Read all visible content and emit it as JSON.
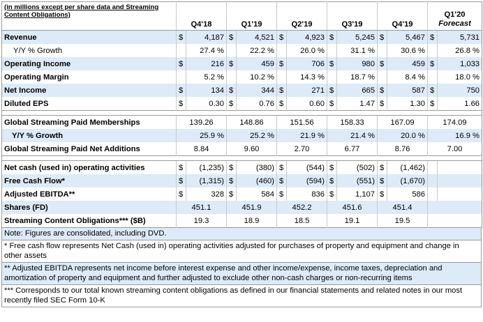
{
  "header": {
    "caption": "(in millions except per share data and Streaming Content Obligations)",
    "periods": [
      "Q4'18",
      "Q1'19",
      "Q2'19",
      "Q3'19",
      "Q4'19"
    ],
    "forecast_period": "Q1'20",
    "forecast_label": "Forecast"
  },
  "rows": [
    {
      "label": "Revenue",
      "cells": [
        [
          "$",
          "4,187"
        ],
        [
          "$",
          "4,521"
        ],
        [
          "$",
          "4,923"
        ],
        [
          "$",
          "5,245"
        ],
        [
          "$",
          "5,467"
        ],
        [
          "$",
          "5,731"
        ]
      ]
    },
    {
      "label": "Y/Y % Growth",
      "cells": [
        [
          "",
          "27.4 %"
        ],
        [
          "",
          "22.2 %"
        ],
        [
          "",
          "26.0 %"
        ],
        [
          "",
          "31.1 %"
        ],
        [
          "",
          "30.6 %"
        ],
        [
          "",
          "26.8 %"
        ]
      ]
    },
    {
      "label": "Operating Income",
      "cells": [
        [
          "$",
          "216"
        ],
        [
          "$",
          "459"
        ],
        [
          "$",
          "706"
        ],
        [
          "$",
          "980"
        ],
        [
          "$",
          "459"
        ],
        [
          "$",
          "1,033"
        ]
      ]
    },
    {
      "label": "Operating Margin",
      "cells": [
        [
          "",
          "5.2 %"
        ],
        [
          "",
          "10.2 %"
        ],
        [
          "",
          "14.3 %"
        ],
        [
          "",
          "18.7 %"
        ],
        [
          "",
          "8.4 %"
        ],
        [
          "",
          "18.0 %"
        ]
      ]
    },
    {
      "label": "Net Income",
      "cells": [
        [
          "$",
          "134"
        ],
        [
          "$",
          "344"
        ],
        [
          "$",
          "271"
        ],
        [
          "$",
          "665"
        ],
        [
          "$",
          "587"
        ],
        [
          "$",
          "750"
        ]
      ]
    },
    {
      "label": "Diluted EPS",
      "cells": [
        [
          "$",
          "0.30"
        ],
        [
          "$",
          "0.76"
        ],
        [
          "$",
          "0.60"
        ],
        [
          "$",
          "1.47"
        ],
        [
          "$",
          "1.30"
        ],
        [
          "$",
          "1.66"
        ]
      ]
    },
    {
      "label": "Global Streaming Paid Memberships",
      "cells": [
        "139.26",
        "148.86",
        "151.56",
        "158.33",
        "167.09",
        "174.09"
      ]
    },
    {
      "label": "Y/Y % Growth",
      "cells": [
        "25.9 %",
        "25.2 %",
        "21.9 %",
        "21.4 %",
        "20.0 %",
        "16.9 %"
      ]
    },
    {
      "label": "Global Streaming Paid Net Additions",
      "cells": [
        "8.84",
        "9.60",
        "2.70",
        "6.77",
        "8.76",
        "7.00"
      ]
    },
    {
      "label": "Net cash (used in) operating activities",
      "cells": [
        [
          "$",
          "(1,235)"
        ],
        [
          "$",
          "(380)"
        ],
        [
          "$",
          "(544)"
        ],
        [
          "$",
          "(502)"
        ],
        [
          "$",
          "(1,462)"
        ]
      ]
    },
    {
      "label": "Free Cash Flow*",
      "cells": [
        [
          "$",
          "(1,315)"
        ],
        [
          "$",
          "(460)"
        ],
        [
          "$",
          "(594)"
        ],
        [
          "$",
          "(551)"
        ],
        [
          "$",
          "(1,670)"
        ]
      ]
    },
    {
      "label": "Adjusted EBITDA**",
      "cells": [
        [
          "$",
          "328"
        ],
        [
          "$",
          "584"
        ],
        [
          "$",
          "836"
        ],
        [
          "$",
          "1,107"
        ],
        [
          "$",
          "586"
        ]
      ]
    },
    {
      "label": "Shares (FD)",
      "cells": [
        "451.1",
        "451.9",
        "452.2",
        "451.6",
        "451.4"
      ]
    },
    {
      "label": "Streaming Content Obligations*** ($B)",
      "cells": [
        "19.3",
        "18.9",
        "18.5",
        "19.1",
        "19.5"
      ]
    }
  ],
  "notes": {
    "consolidated": "Note: Figures are consolidated, including DVD.",
    "fcf": "* Free cash flow represents Net Cash (used in) operating activities adjusted for purchases of property and equipment and change in other assets",
    "ebitda": "** Adjusted EBITDA represents net income before interest expense and other income/expense, income taxes, depreciation and amortization of property and equipment and further adjusted to exclude other non-cash charges or non-recurring items",
    "sco": "*** Corresponds to our total known streaming content obligations as defined in our financial statements and related notes in our most recently filed SEC Form 10-K"
  }
}
